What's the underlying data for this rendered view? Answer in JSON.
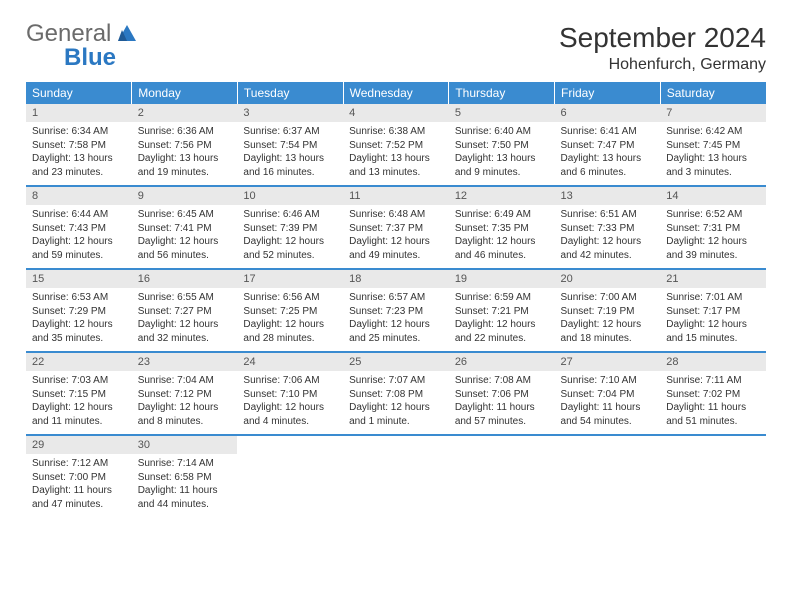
{
  "logo": {
    "word1": "General",
    "word2": "Blue"
  },
  "title": "September 2024",
  "location": "Hohenfurch, Germany",
  "colors": {
    "header_bg": "#3a8bd0",
    "header_text": "#ffffff",
    "daynum_bg": "#e9e9e9",
    "row_divider": "#3a8bd0",
    "logo_gray": "#6b6b6b",
    "logo_blue": "#2b78c2"
  },
  "weekdays": [
    "Sunday",
    "Monday",
    "Tuesday",
    "Wednesday",
    "Thursday",
    "Friday",
    "Saturday"
  ],
  "weeks": [
    [
      {
        "n": "1",
        "sr": "Sunrise: 6:34 AM",
        "ss": "Sunset: 7:58 PM",
        "dl": "Daylight: 13 hours and 23 minutes."
      },
      {
        "n": "2",
        "sr": "Sunrise: 6:36 AM",
        "ss": "Sunset: 7:56 PM",
        "dl": "Daylight: 13 hours and 19 minutes."
      },
      {
        "n": "3",
        "sr": "Sunrise: 6:37 AM",
        "ss": "Sunset: 7:54 PM",
        "dl": "Daylight: 13 hours and 16 minutes."
      },
      {
        "n": "4",
        "sr": "Sunrise: 6:38 AM",
        "ss": "Sunset: 7:52 PM",
        "dl": "Daylight: 13 hours and 13 minutes."
      },
      {
        "n": "5",
        "sr": "Sunrise: 6:40 AM",
        "ss": "Sunset: 7:50 PM",
        "dl": "Daylight: 13 hours and 9 minutes."
      },
      {
        "n": "6",
        "sr": "Sunrise: 6:41 AM",
        "ss": "Sunset: 7:47 PM",
        "dl": "Daylight: 13 hours and 6 minutes."
      },
      {
        "n": "7",
        "sr": "Sunrise: 6:42 AM",
        "ss": "Sunset: 7:45 PM",
        "dl": "Daylight: 13 hours and 3 minutes."
      }
    ],
    [
      {
        "n": "8",
        "sr": "Sunrise: 6:44 AM",
        "ss": "Sunset: 7:43 PM",
        "dl": "Daylight: 12 hours and 59 minutes."
      },
      {
        "n": "9",
        "sr": "Sunrise: 6:45 AM",
        "ss": "Sunset: 7:41 PM",
        "dl": "Daylight: 12 hours and 56 minutes."
      },
      {
        "n": "10",
        "sr": "Sunrise: 6:46 AM",
        "ss": "Sunset: 7:39 PM",
        "dl": "Daylight: 12 hours and 52 minutes."
      },
      {
        "n": "11",
        "sr": "Sunrise: 6:48 AM",
        "ss": "Sunset: 7:37 PM",
        "dl": "Daylight: 12 hours and 49 minutes."
      },
      {
        "n": "12",
        "sr": "Sunrise: 6:49 AM",
        "ss": "Sunset: 7:35 PM",
        "dl": "Daylight: 12 hours and 46 minutes."
      },
      {
        "n": "13",
        "sr": "Sunrise: 6:51 AM",
        "ss": "Sunset: 7:33 PM",
        "dl": "Daylight: 12 hours and 42 minutes."
      },
      {
        "n": "14",
        "sr": "Sunrise: 6:52 AM",
        "ss": "Sunset: 7:31 PM",
        "dl": "Daylight: 12 hours and 39 minutes."
      }
    ],
    [
      {
        "n": "15",
        "sr": "Sunrise: 6:53 AM",
        "ss": "Sunset: 7:29 PM",
        "dl": "Daylight: 12 hours and 35 minutes."
      },
      {
        "n": "16",
        "sr": "Sunrise: 6:55 AM",
        "ss": "Sunset: 7:27 PM",
        "dl": "Daylight: 12 hours and 32 minutes."
      },
      {
        "n": "17",
        "sr": "Sunrise: 6:56 AM",
        "ss": "Sunset: 7:25 PM",
        "dl": "Daylight: 12 hours and 28 minutes."
      },
      {
        "n": "18",
        "sr": "Sunrise: 6:57 AM",
        "ss": "Sunset: 7:23 PM",
        "dl": "Daylight: 12 hours and 25 minutes."
      },
      {
        "n": "19",
        "sr": "Sunrise: 6:59 AM",
        "ss": "Sunset: 7:21 PM",
        "dl": "Daylight: 12 hours and 22 minutes."
      },
      {
        "n": "20",
        "sr": "Sunrise: 7:00 AM",
        "ss": "Sunset: 7:19 PM",
        "dl": "Daylight: 12 hours and 18 minutes."
      },
      {
        "n": "21",
        "sr": "Sunrise: 7:01 AM",
        "ss": "Sunset: 7:17 PM",
        "dl": "Daylight: 12 hours and 15 minutes."
      }
    ],
    [
      {
        "n": "22",
        "sr": "Sunrise: 7:03 AM",
        "ss": "Sunset: 7:15 PM",
        "dl": "Daylight: 12 hours and 11 minutes."
      },
      {
        "n": "23",
        "sr": "Sunrise: 7:04 AM",
        "ss": "Sunset: 7:12 PM",
        "dl": "Daylight: 12 hours and 8 minutes."
      },
      {
        "n": "24",
        "sr": "Sunrise: 7:06 AM",
        "ss": "Sunset: 7:10 PM",
        "dl": "Daylight: 12 hours and 4 minutes."
      },
      {
        "n": "25",
        "sr": "Sunrise: 7:07 AM",
        "ss": "Sunset: 7:08 PM",
        "dl": "Daylight: 12 hours and 1 minute."
      },
      {
        "n": "26",
        "sr": "Sunrise: 7:08 AM",
        "ss": "Sunset: 7:06 PM",
        "dl": "Daylight: 11 hours and 57 minutes."
      },
      {
        "n": "27",
        "sr": "Sunrise: 7:10 AM",
        "ss": "Sunset: 7:04 PM",
        "dl": "Daylight: 11 hours and 54 minutes."
      },
      {
        "n": "28",
        "sr": "Sunrise: 7:11 AM",
        "ss": "Sunset: 7:02 PM",
        "dl": "Daylight: 11 hours and 51 minutes."
      }
    ],
    [
      {
        "n": "29",
        "sr": "Sunrise: 7:12 AM",
        "ss": "Sunset: 7:00 PM",
        "dl": "Daylight: 11 hours and 47 minutes."
      },
      {
        "n": "30",
        "sr": "Sunrise: 7:14 AM",
        "ss": "Sunset: 6:58 PM",
        "dl": "Daylight: 11 hours and 44 minutes."
      },
      null,
      null,
      null,
      null,
      null
    ]
  ]
}
